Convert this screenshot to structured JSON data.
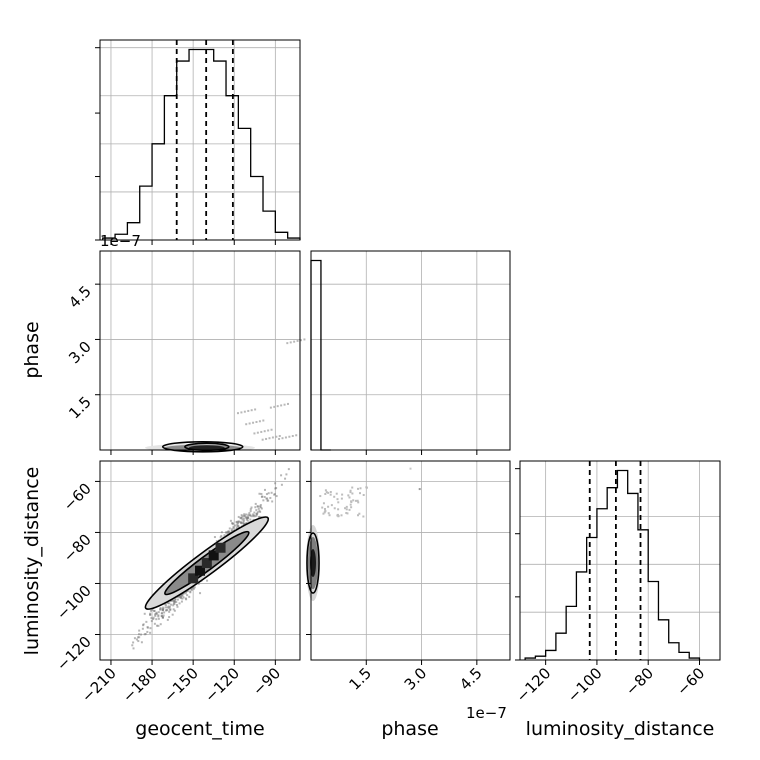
{
  "chart_data": [
    {
      "type": "histogram",
      "panel": "geocent_time-1d",
      "x_ticks": [
        -210,
        -180,
        -150,
        -120,
        -90
      ],
      "x_range": [
        -218,
        -72
      ],
      "bins": [
        -216,
        -207,
        -198,
        -189,
        -180,
        -171,
        -162,
        -153,
        -144,
        -135,
        -126,
        -117,
        -108,
        -99,
        -90,
        -81
      ],
      "counts": [
        1,
        3,
        9,
        28,
        50,
        75,
        93,
        99,
        99,
        93,
        75,
        58,
        33,
        15,
        4,
        1
      ],
      "quantiles": [
        -162,
        -140.5,
        -121
      ]
    },
    {
      "type": "scatter-contour",
      "panel": "geocent_time-phase",
      "x_label": "",
      "y_label": "phase",
      "x_range": [
        -218,
        -72
      ],
      "y_range": [
        0,
        5.4
      ],
      "y_ticks": [
        1.5,
        3.0,
        4.5
      ],
      "y_tick_labels": [
        "1.5",
        "3.0",
        "4.5"
      ],
      "offset_text": "1e−7"
    },
    {
      "type": "histogram",
      "panel": "phase-1d",
      "x_range": [
        0,
        5.4
      ],
      "bins": [
        0,
        0.27
      ],
      "counts": [
        100,
        0
      ]
    },
    {
      "type": "scatter-contour",
      "panel": "geocent_time-luminosity_distance",
      "x_label": "geocent_time",
      "y_label": "luminosity_distance",
      "x_range": [
        -218,
        -72
      ],
      "y_range": [
        -130,
        -52
      ],
      "x_ticks": [
        -210,
        -180,
        -150,
        -120,
        -90
      ],
      "x_tick_labels": [
        "−210",
        "−180",
        "−150",
        "−120",
        "−90"
      ],
      "y_ticks": [
        -60,
        -80,
        -100,
        -120
      ],
      "y_tick_labels": [
        "−60",
        "−80",
        "−100",
        "−120"
      ]
    },
    {
      "type": "scatter-contour",
      "panel": "phase-luminosity_distance",
      "x_label": "phase",
      "x_range": [
        0,
        5.4
      ],
      "y_range": [
        -130,
        -52
      ],
      "x_ticks": [
        1.5,
        3.0,
        4.5
      ],
      "x_tick_labels": [
        "1.5",
        "3.0",
        "4.5"
      ],
      "offset_text": "1e−7"
    },
    {
      "type": "histogram",
      "panel": "luminosity_distance-1d",
      "x_label": "luminosity_distance",
      "x_range": [
        -130,
        -52
      ],
      "x_ticks": [
        -120,
        -100,
        -80,
        -60
      ],
      "x_tick_labels": [
        "−120",
        "−100",
        "−80",
        "−60"
      ],
      "bins": [
        -128,
        -124,
        -120,
        -116,
        -112,
        -108,
        -104,
        -100,
        -96,
        -92,
        -88,
        -84,
        -80,
        -76,
        -72,
        -68,
        -64,
        -60
      ],
      "counts": [
        1,
        2,
        5,
        14,
        28,
        46,
        64,
        79,
        90,
        99,
        87,
        68,
        41,
        21,
        9,
        4,
        1
      ],
      "quantiles": [
        -102.8,
        -92.6,
        -83
      ]
    }
  ]
}
